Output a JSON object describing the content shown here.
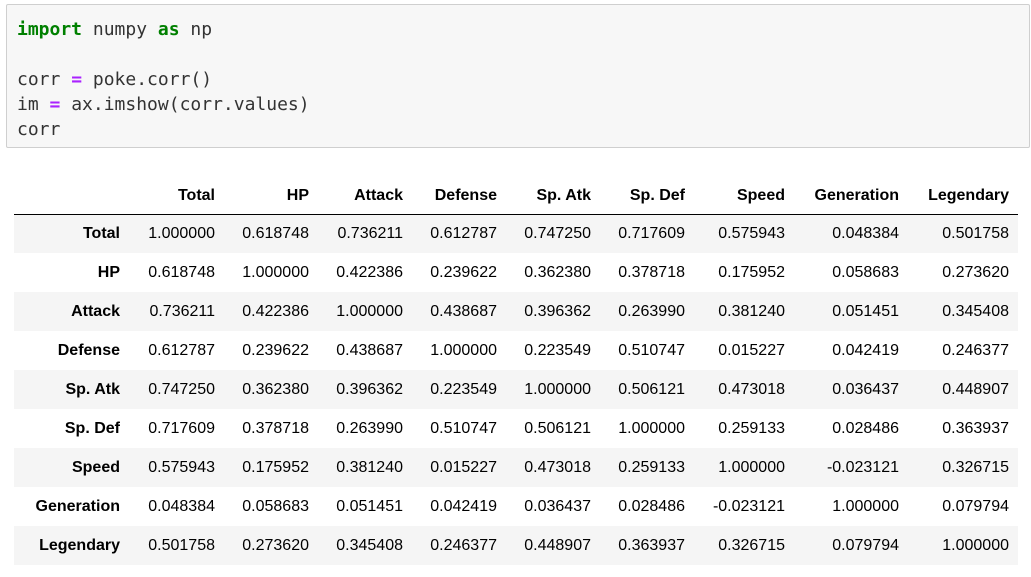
{
  "code": {
    "line1": {
      "kw1": "import",
      "mid": " numpy ",
      "kw2": "as",
      "end": " np"
    },
    "line3": {
      "lhs": "corr ",
      "op": "=",
      "rhs": " poke.corr()"
    },
    "line4": {
      "lhs": "im ",
      "op": "=",
      "rhs": " ax.imshow(corr.values)"
    },
    "line5": "corr"
  },
  "table": {
    "columns": [
      "Total",
      "HP",
      "Attack",
      "Defense",
      "Sp. Atk",
      "Sp. Def",
      "Speed",
      "Generation",
      "Legendary"
    ],
    "rows": [
      {
        "label": "Total",
        "values": [
          "1.000000",
          "0.618748",
          "0.736211",
          "0.612787",
          "0.747250",
          "0.717609",
          "0.575943",
          "0.048384",
          "0.501758"
        ]
      },
      {
        "label": "HP",
        "values": [
          "0.618748",
          "1.000000",
          "0.422386",
          "0.239622",
          "0.362380",
          "0.378718",
          "0.175952",
          "0.058683",
          "0.273620"
        ]
      },
      {
        "label": "Attack",
        "values": [
          "0.736211",
          "0.422386",
          "1.000000",
          "0.438687",
          "0.396362",
          "0.263990",
          "0.381240",
          "0.051451",
          "0.345408"
        ]
      },
      {
        "label": "Defense",
        "values": [
          "0.612787",
          "0.239622",
          "0.438687",
          "1.000000",
          "0.223549",
          "0.510747",
          "0.015227",
          "0.042419",
          "0.246377"
        ]
      },
      {
        "label": "Sp. Atk",
        "values": [
          "0.747250",
          "0.362380",
          "0.396362",
          "0.223549",
          "1.000000",
          "0.506121",
          "0.473018",
          "0.036437",
          "0.448907"
        ]
      },
      {
        "label": "Sp. Def",
        "values": [
          "0.717609",
          "0.378718",
          "0.263990",
          "0.510747",
          "0.506121",
          "1.000000",
          "0.259133",
          "0.028486",
          "0.363937"
        ]
      },
      {
        "label": "Speed",
        "values": [
          "0.575943",
          "0.175952",
          "0.381240",
          "0.015227",
          "0.473018",
          "0.259133",
          "1.000000",
          "-0.023121",
          "0.326715"
        ]
      },
      {
        "label": "Generation",
        "values": [
          "0.048384",
          "0.058683",
          "0.051451",
          "0.042419",
          "0.036437",
          "0.028486",
          "-0.023121",
          "1.000000",
          "0.079794"
        ]
      },
      {
        "label": "Legendary",
        "values": [
          "0.501758",
          "0.273620",
          "0.345408",
          "0.246377",
          "0.448907",
          "0.363937",
          "0.326715",
          "0.079794",
          "1.000000"
        ]
      }
    ]
  },
  "colors": {
    "keyword": "#008000",
    "operator": "#aa22ff",
    "code_bg": "#f7f7f7",
    "striped_row": "#f5f5f5"
  }
}
